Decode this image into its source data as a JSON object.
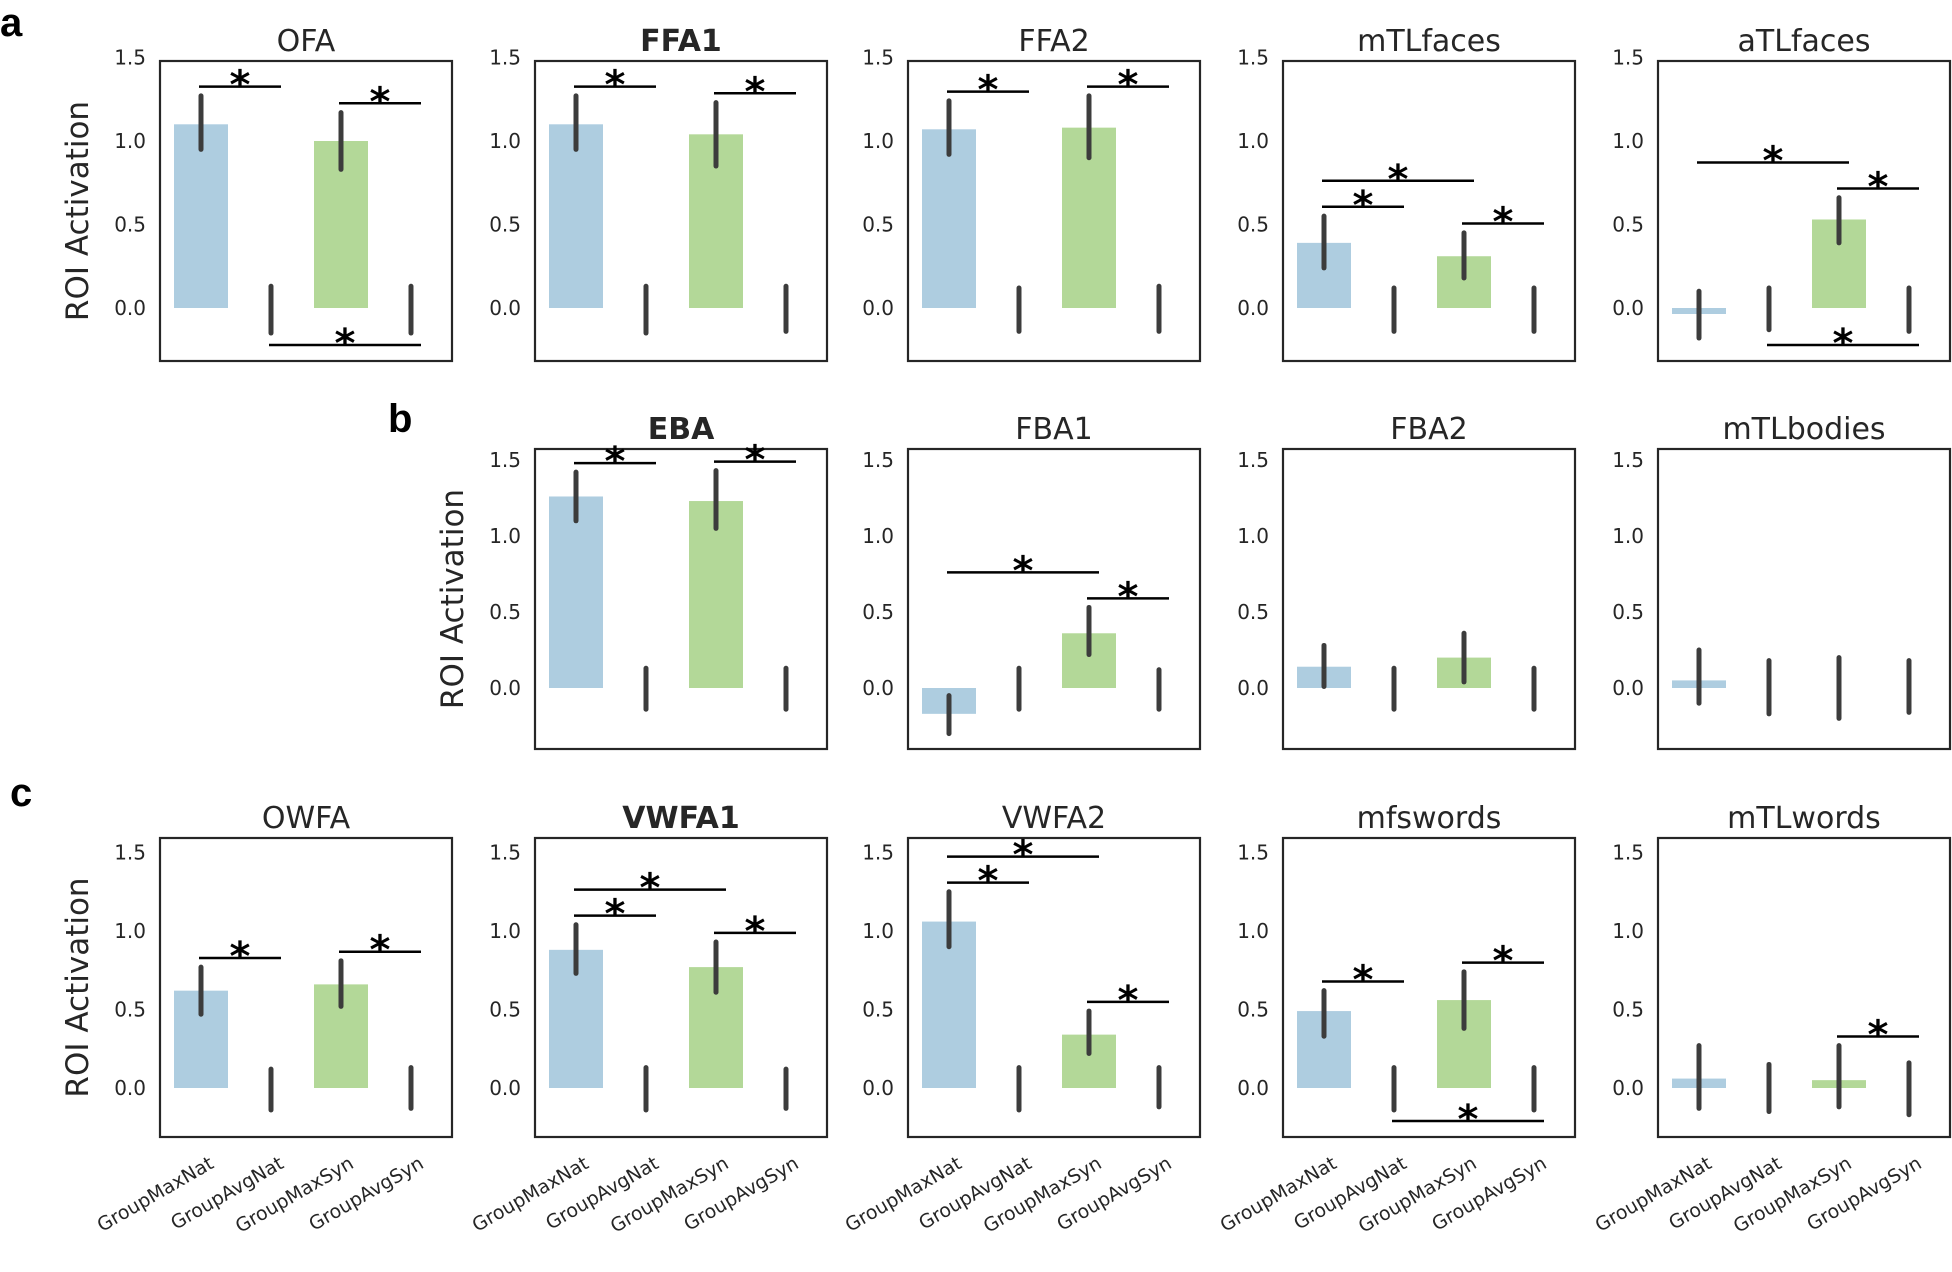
{
  "panel_letters": [
    "a",
    "b",
    "c"
  ],
  "colors": {
    "nat": "#aecde0",
    "syn": "#b3d898",
    "errorbar": "#3c3c3c"
  },
  "yaxis": {
    "label": "ROI Activation",
    "ticks": [
      "0.0",
      "0.5",
      "1.0",
      "1.5"
    ]
  },
  "xtick_labels": [
    "GroupMaxNat",
    "GroupAvgNat",
    "GroupMaxSyn",
    "GroupAvgSyn"
  ],
  "significance_marker": "*",
  "chart_data": [
    {
      "row": "a",
      "title": "OFA",
      "bold": false,
      "type": "bar",
      "ylim": [
        -0.3,
        1.5
      ],
      "categories": [
        "GroupMaxNat",
        "GroupAvgNat",
        "GroupMaxSyn",
        "GroupAvgSyn"
      ],
      "values": [
        1.1,
        0.0,
        1.0,
        0.0
      ],
      "err_low": [
        0.95,
        -0.15,
        0.83,
        -0.15
      ],
      "err_high": [
        1.27,
        0.13,
        1.17,
        0.13
      ],
      "sig": [
        [
          0,
          1
        ],
        [
          2,
          3
        ],
        [
          1,
          3
        ]
      ]
    },
    {
      "row": "a",
      "title": "FFA1",
      "bold": true,
      "type": "bar",
      "ylim": [
        -0.3,
        1.5
      ],
      "categories": [
        "GroupMaxNat",
        "GroupAvgNat",
        "GroupMaxSyn",
        "GroupAvgSyn"
      ],
      "values": [
        1.1,
        0.0,
        1.04,
        0.0
      ],
      "err_low": [
        0.95,
        -0.15,
        0.85,
        -0.14
      ],
      "err_high": [
        1.27,
        0.13,
        1.23,
        0.13
      ],
      "sig": [
        [
          0,
          1
        ],
        [
          2,
          3
        ]
      ]
    },
    {
      "row": "a",
      "title": "FFA2",
      "bold": false,
      "type": "bar",
      "ylim": [
        -0.3,
        1.5
      ],
      "categories": [
        "GroupMaxNat",
        "GroupAvgNat",
        "GroupMaxSyn",
        "GroupAvgSyn"
      ],
      "values": [
        1.07,
        0.0,
        1.08,
        0.0
      ],
      "err_low": [
        0.92,
        -0.14,
        0.9,
        -0.14
      ],
      "err_high": [
        1.24,
        0.12,
        1.27,
        0.13
      ],
      "sig": [
        [
          0,
          1
        ],
        [
          2,
          3
        ]
      ]
    },
    {
      "row": "a",
      "title": "mTLfaces",
      "bold": false,
      "type": "bar",
      "ylim": [
        -0.3,
        1.5
      ],
      "categories": [
        "GroupMaxNat",
        "GroupAvgNat",
        "GroupMaxSyn",
        "GroupAvgSyn"
      ],
      "values": [
        0.39,
        0.0,
        0.31,
        0.0
      ],
      "err_low": [
        0.24,
        -0.14,
        0.18,
        -0.14
      ],
      "err_high": [
        0.55,
        0.12,
        0.45,
        0.12
      ],
      "sig": [
        [
          0,
          1
        ],
        [
          2,
          3
        ],
        [
          0,
          2
        ]
      ]
    },
    {
      "row": "a",
      "title": "aTLfaces",
      "bold": false,
      "type": "bar",
      "ylim": [
        -0.3,
        1.5
      ],
      "categories": [
        "GroupMaxNat",
        "GroupAvgNat",
        "GroupMaxSyn",
        "GroupAvgSyn"
      ],
      "values": [
        -0.03,
        0.0,
        0.53,
        0.0
      ],
      "err_low": [
        -0.18,
        -0.13,
        0.39,
        -0.14
      ],
      "err_high": [
        0.1,
        0.12,
        0.66,
        0.12
      ],
      "sig": [
        [
          2,
          3
        ],
        [
          0,
          2
        ],
        [
          1,
          3
        ]
      ]
    },
    {
      "row": "b",
      "title": "EBA",
      "bold": true,
      "type": "bar",
      "ylim": [
        -0.4,
        1.6
      ],
      "categories": [
        "GroupMaxNat",
        "GroupAvgNat",
        "GroupMaxSyn",
        "GroupAvgSyn"
      ],
      "values": [
        1.26,
        0.0,
        1.23,
        0.0
      ],
      "err_low": [
        1.1,
        -0.14,
        1.05,
        -0.14
      ],
      "err_high": [
        1.42,
        0.13,
        1.43,
        0.13
      ],
      "sig": [
        [
          0,
          1
        ],
        [
          2,
          3
        ]
      ]
    },
    {
      "row": "b",
      "title": "FBA1",
      "bold": false,
      "type": "bar",
      "ylim": [
        -0.4,
        1.6
      ],
      "categories": [
        "GroupMaxNat",
        "GroupAvgNat",
        "GroupMaxSyn",
        "GroupAvgSyn"
      ],
      "values": [
        -0.17,
        0.0,
        0.36,
        0.0
      ],
      "err_low": [
        -0.3,
        -0.14,
        0.22,
        -0.14
      ],
      "err_high": [
        -0.05,
        0.13,
        0.53,
        0.12
      ],
      "sig": [
        [
          2,
          3
        ],
        [
          0,
          2
        ]
      ]
    },
    {
      "row": "b",
      "title": "FBA2",
      "bold": false,
      "type": "bar",
      "ylim": [
        -0.4,
        1.6
      ],
      "categories": [
        "GroupMaxNat",
        "GroupAvgNat",
        "GroupMaxSyn",
        "GroupAvgSyn"
      ],
      "values": [
        0.14,
        0.0,
        0.2,
        0.0
      ],
      "err_low": [
        0.01,
        -0.14,
        0.04,
        -0.14
      ],
      "err_high": [
        0.28,
        0.13,
        0.36,
        0.13
      ],
      "sig": []
    },
    {
      "row": "b",
      "title": "mTLbodies",
      "bold": false,
      "type": "bar",
      "ylim": [
        -0.4,
        1.6
      ],
      "categories": [
        "GroupMaxNat",
        "GroupAvgNat",
        "GroupMaxSyn",
        "GroupAvgSyn"
      ],
      "values": [
        0.05,
        0.0,
        0.0,
        0.0
      ],
      "err_low": [
        -0.1,
        -0.17,
        -0.2,
        -0.16
      ],
      "err_high": [
        0.25,
        0.18,
        0.2,
        0.18
      ],
      "sig": []
    },
    {
      "row": "c",
      "title": "OWFA",
      "bold": false,
      "type": "bar",
      "ylim": [
        -0.3,
        1.6
      ],
      "categories": [
        "GroupMaxNat",
        "GroupAvgNat",
        "GroupMaxSyn",
        "GroupAvgSyn"
      ],
      "values": [
        0.62,
        0.0,
        0.66,
        0.0
      ],
      "err_low": [
        0.47,
        -0.14,
        0.52,
        -0.13
      ],
      "err_high": [
        0.77,
        0.12,
        0.81,
        0.13
      ],
      "sig": [
        [
          0,
          1
        ],
        [
          2,
          3
        ]
      ]
    },
    {
      "row": "c",
      "title": "VWFA1",
      "bold": true,
      "type": "bar",
      "ylim": [
        -0.3,
        1.6
      ],
      "categories": [
        "GroupMaxNat",
        "GroupAvgNat",
        "GroupMaxSyn",
        "GroupAvgSyn"
      ],
      "values": [
        0.88,
        0.0,
        0.77,
        0.0
      ],
      "err_low": [
        0.73,
        -0.14,
        0.61,
        -0.13
      ],
      "err_high": [
        1.04,
        0.13,
        0.93,
        0.12
      ],
      "sig": [
        [
          0,
          1
        ],
        [
          2,
          3
        ],
        [
          0,
          2
        ]
      ]
    },
    {
      "row": "c",
      "title": "VWFA2",
      "bold": false,
      "type": "bar",
      "ylim": [
        -0.3,
        1.6
      ],
      "categories": [
        "GroupMaxNat",
        "GroupAvgNat",
        "GroupMaxSyn",
        "GroupAvgSyn"
      ],
      "values": [
        1.06,
        0.0,
        0.34,
        0.0
      ],
      "err_low": [
        0.9,
        -0.14,
        0.22,
        -0.12
      ],
      "err_high": [
        1.25,
        0.13,
        0.49,
        0.13
      ],
      "sig": [
        [
          0,
          1
        ],
        [
          2,
          3
        ],
        [
          0,
          2
        ]
      ]
    },
    {
      "row": "c",
      "title": "mfswords",
      "bold": false,
      "type": "bar",
      "ylim": [
        -0.3,
        1.6
      ],
      "categories": [
        "GroupMaxNat",
        "GroupAvgNat",
        "GroupMaxSyn",
        "GroupAvgSyn"
      ],
      "values": [
        0.49,
        0.0,
        0.56,
        0.0
      ],
      "err_low": [
        0.33,
        -0.14,
        0.38,
        -0.14
      ],
      "err_high": [
        0.62,
        0.13,
        0.74,
        0.13
      ],
      "sig": [
        [
          0,
          1
        ],
        [
          2,
          3
        ],
        [
          1,
          3
        ]
      ]
    },
    {
      "row": "c",
      "title": "mTLwords",
      "bold": false,
      "type": "bar",
      "ylim": [
        -0.3,
        1.6
      ],
      "categories": [
        "GroupMaxNat",
        "GroupAvgNat",
        "GroupMaxSyn",
        "GroupAvgSyn"
      ],
      "values": [
        0.06,
        0.0,
        0.05,
        0.0
      ],
      "err_low": [
        -0.13,
        -0.15,
        -0.12,
        -0.17
      ],
      "err_high": [
        0.27,
        0.15,
        0.27,
        0.16
      ],
      "sig": [
        [
          2,
          3
        ]
      ]
    }
  ]
}
